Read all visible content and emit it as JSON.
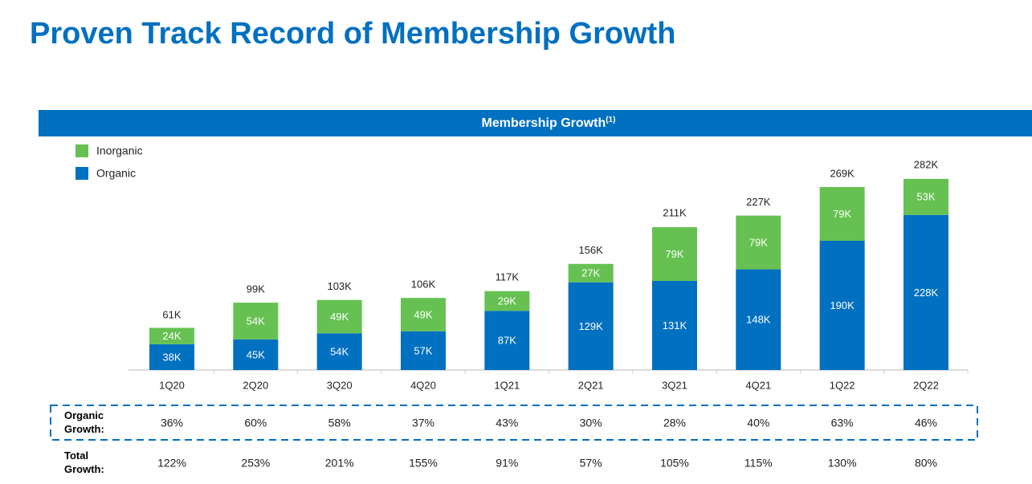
{
  "chart_data": {
    "type": "stacked-bar",
    "title": "Proven Track Record of Membership Growth",
    "subtitle": "Membership Growth",
    "subtitle_footnote": "(1)",
    "categories": [
      "1Q20",
      "2Q20",
      "3Q20",
      "4Q20",
      "1Q21",
      "2Q21",
      "3Q21",
      "4Q21",
      "1Q22",
      "2Q22"
    ],
    "series": [
      {
        "name": "Organic",
        "color": "#0070c0",
        "values": [
          38,
          45,
          54,
          57,
          87,
          129,
          131,
          148,
          190,
          228
        ],
        "value_labels": [
          "38K",
          "45K",
          "54K",
          "57K",
          "87K",
          "129K",
          "131K",
          "148K",
          "190K",
          "228K"
        ]
      },
      {
        "name": "Inorganic",
        "color": "#66c152",
        "values": [
          24,
          54,
          49,
          49,
          29,
          27,
          79,
          79,
          79,
          53
        ],
        "value_labels": [
          "24K",
          "54K",
          "49K",
          "49K",
          "29K",
          "27K",
          "79K",
          "79K",
          "79K",
          "53K"
        ]
      }
    ],
    "totals": {
      "values": [
        61,
        99,
        103,
        106,
        117,
        156,
        211,
        227,
        269,
        282
      ],
      "value_labels": [
        "61K",
        "99K",
        "103K",
        "106K",
        "117K",
        "156K",
        "211K",
        "227K",
        "269K",
        "282K"
      ]
    },
    "rows": [
      {
        "label": "Organic Growth:",
        "values": [
          36,
          60,
          58,
          37,
          43,
          30,
          28,
          40,
          63,
          46
        ],
        "value_labels": [
          "36%",
          "60%",
          "58%",
          "37%",
          "43%",
          "30%",
          "28%",
          "40%",
          "63%",
          "46%"
        ]
      },
      {
        "label": "Total Growth:",
        "values": [
          122,
          253,
          201,
          155,
          91,
          57,
          105,
          115,
          130,
          80
        ],
        "value_labels": [
          "122%",
          "253%",
          "201%",
          "155%",
          "91%",
          "57%",
          "105%",
          "115%",
          "130%",
          "80%"
        ]
      }
    ]
  }
}
